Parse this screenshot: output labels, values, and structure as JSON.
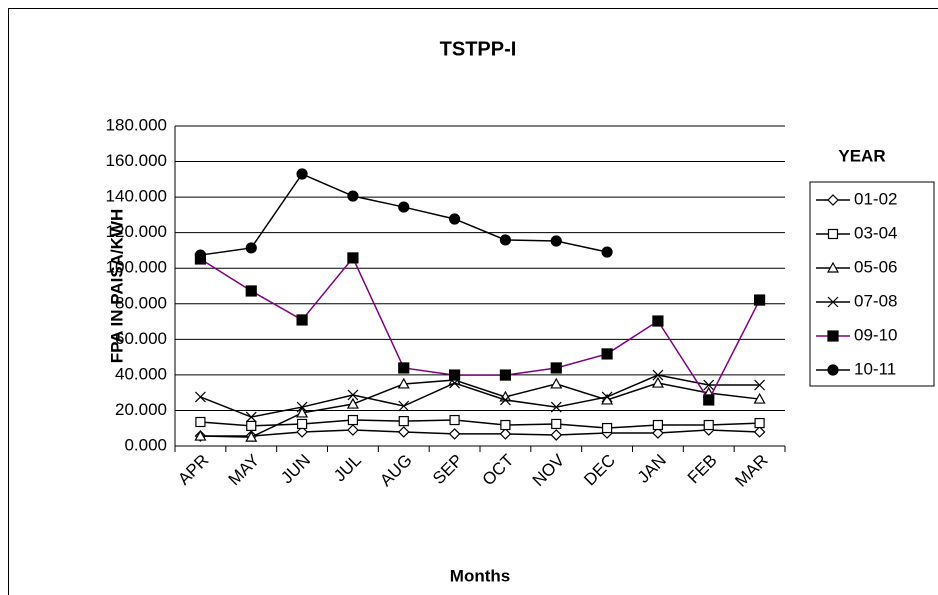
{
  "chart_data": {
    "type": "line",
    "title": "TSTPP-I",
    "x_label": "Months",
    "y_label": "FPA IN PAISA/KWH",
    "legend_title": "YEAR",
    "legend": "right",
    "categories": [
      "APR",
      "MAY",
      "JUN",
      "JUL",
      "AUG",
      "SEP",
      "OCT",
      "NOV",
      "DEC",
      "JAN",
      "FEB",
      "MAR"
    ],
    "ylim": [
      0,
      180
    ],
    "yticks": [
      {
        "value": 0,
        "label": "0.000"
      },
      {
        "value": 20,
        "label": "20.000"
      },
      {
        "value": 40,
        "label": "40.000"
      },
      {
        "value": 60,
        "label": "60.000"
      },
      {
        "value": 80,
        "label": "80.000"
      },
      {
        "value": 100,
        "label": "100.000"
      },
      {
        "value": 120,
        "label": "120.000"
      },
      {
        "value": 140,
        "label": "140.000"
      },
      {
        "value": 160,
        "label": "160.000"
      },
      {
        "value": 180,
        "label": "180.000"
      }
    ],
    "grid": true,
    "marker_color": "#000000",
    "series": [
      {
        "name": "01-02",
        "color": "#000000",
        "marker": "diamond",
        "values": [
          5.6,
          5.6,
          7.9,
          9,
          7.9,
          6.8,
          6.8,
          6.2,
          7.3,
          7.3,
          9,
          7.9
        ]
      },
      {
        "name": "03-04",
        "color": "#000000",
        "marker": "square",
        "values": [
          13.5,
          11.3,
          12.4,
          14.6,
          14,
          14.6,
          11.8,
          12.4,
          10.1,
          11.8,
          11.8,
          12.9
        ]
      },
      {
        "name": "05-06",
        "color": "#000000",
        "marker": "triangle",
        "values": [
          5.6,
          5,
          18.6,
          23.6,
          34.9,
          37.1,
          27.6,
          34.9,
          25.9,
          35.4,
          29.8,
          26.4
        ]
      },
      {
        "name": "07-08",
        "color": "#000000",
        "marker": "x",
        "values": [
          27.6,
          16.3,
          21.9,
          28.7,
          22.5,
          35.4,
          25.9,
          21.9,
          27.6,
          39.9,
          34.3,
          34.3
        ]
      },
      {
        "name": "09-10",
        "color": "#800080",
        "marker": "filled-square",
        "values": [
          105.2,
          87.2,
          70.9,
          105.8,
          43.9,
          39.9,
          39.9,
          43.9,
          51.8,
          70.3,
          25.9,
          82.1
        ]
      },
      {
        "name": "10-11",
        "color": "#000000",
        "marker": "circle",
        "values": [
          107.4,
          111.4,
          153,
          140.6,
          134.4,
          127.7,
          115.9,
          115.3,
          109.1,
          null,
          null,
          null
        ]
      }
    ]
  }
}
